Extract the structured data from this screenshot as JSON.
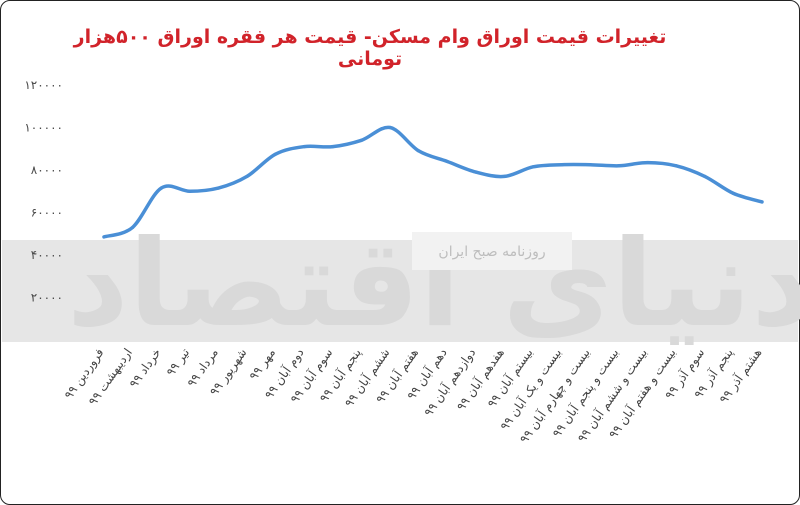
{
  "chart_data": {
    "type": "line",
    "title": "تغییرات قیمت اوراق وام مسکن- قیمت هر فقره اوراق ۵۰۰هزار تومانی",
    "xlabel": "",
    "ylabel": "",
    "ylim": [
      0,
      120000
    ],
    "yticks": [
      20000,
      40000,
      60000,
      80000,
      100000,
      120000
    ],
    "ytick_labels": [
      "۲۰۰۰۰",
      "۴۰۰۰۰",
      "۶۰۰۰۰",
      "۸۰۰۰۰",
      "۱۰۰۰۰۰",
      "۱۲۰۰۰۰"
    ],
    "grid": false,
    "series_color": "#4a8fd6",
    "categories": [
      "فروردین ۹۹",
      "اردیبهشت ۹۹",
      "خرداد ۹۹",
      "تیر ۹۹",
      "مرداد ۹۹",
      "شهریور ۹۹",
      "مهر ۹۹",
      "دوم آبان ۹۹",
      "سوم آبان ۹۹",
      "پنجم آبان ۹۹",
      "ششم آبان ۹۹",
      "هفتم آبان ۹۹",
      "دهم آبان ۹۹",
      "دوازدهم آبان ۹۹",
      "هفدهم آبان ۹۹",
      "بیستم آبان ۹۹",
      "بیست و یک آبان ۹۹",
      "بیست و چهارم آبان ۹۹",
      "بیست و پنجم آبان ۹۹",
      "بیست و ششم آبان ۹۹",
      "بیست و هفتم آبان ۹۹",
      "سوم آذر ۹۹",
      "پنجم آذر ۹۹",
      "هشتم آذر ۹۹"
    ],
    "series": [
      {
        "values": [
          48500,
          53000,
          71500,
          70000,
          71500,
          77000,
          87500,
          91000,
          91000,
          94000,
          100000,
          89000,
          84000,
          79000,
          77000,
          81500,
          82500,
          82500,
          82000,
          83500,
          82000,
          77000,
          69000,
          65000
        ]
      }
    ]
  },
  "watermark": {
    "logo_text": "دنیای اقتصاد",
    "subtitle": "روزنامه صبح ایران"
  }
}
